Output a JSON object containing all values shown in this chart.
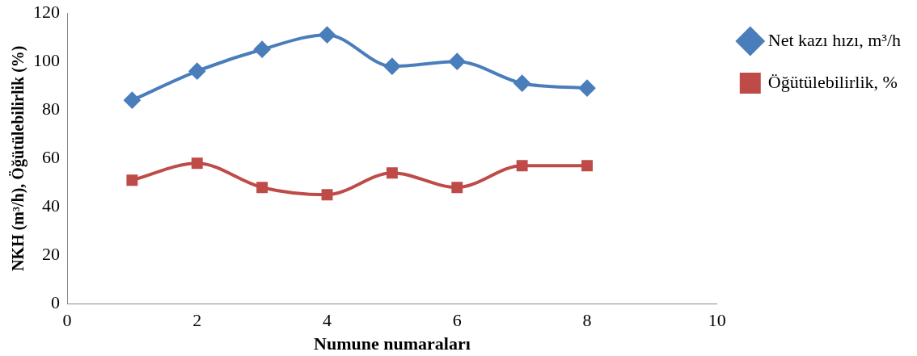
{
  "chart_data": {
    "type": "line",
    "xlabel": "Numune numaraları",
    "ylabel": "NKH (m³/h), Öğütülebilirlik (%)",
    "xlim": [
      0,
      10
    ],
    "xticks": [
      0,
      2,
      4,
      6,
      8,
      10
    ],
    "ylim": [
      0,
      120
    ],
    "yticks": [
      0,
      20,
      40,
      60,
      80,
      100,
      120
    ],
    "grid": false,
    "legend": "right",
    "line_style": "solid",
    "series": [
      {
        "name": "Net kazı hızı, m³/h",
        "color": "#4a7ebb",
        "marker": "diamond",
        "x": [
          1,
          2,
          3,
          4,
          5,
          6,
          7,
          8
        ],
        "values": [
          84,
          96,
          105,
          111,
          98,
          100,
          91,
          89
        ]
      },
      {
        "name": "Öğütülebilirlik, %",
        "color": "#be4b48",
        "marker": "square",
        "x": [
          1,
          2,
          3,
          4,
          5,
          6,
          7,
          8
        ],
        "values": [
          51,
          58,
          48,
          45,
          54,
          48,
          57,
          57
        ]
      }
    ]
  }
}
